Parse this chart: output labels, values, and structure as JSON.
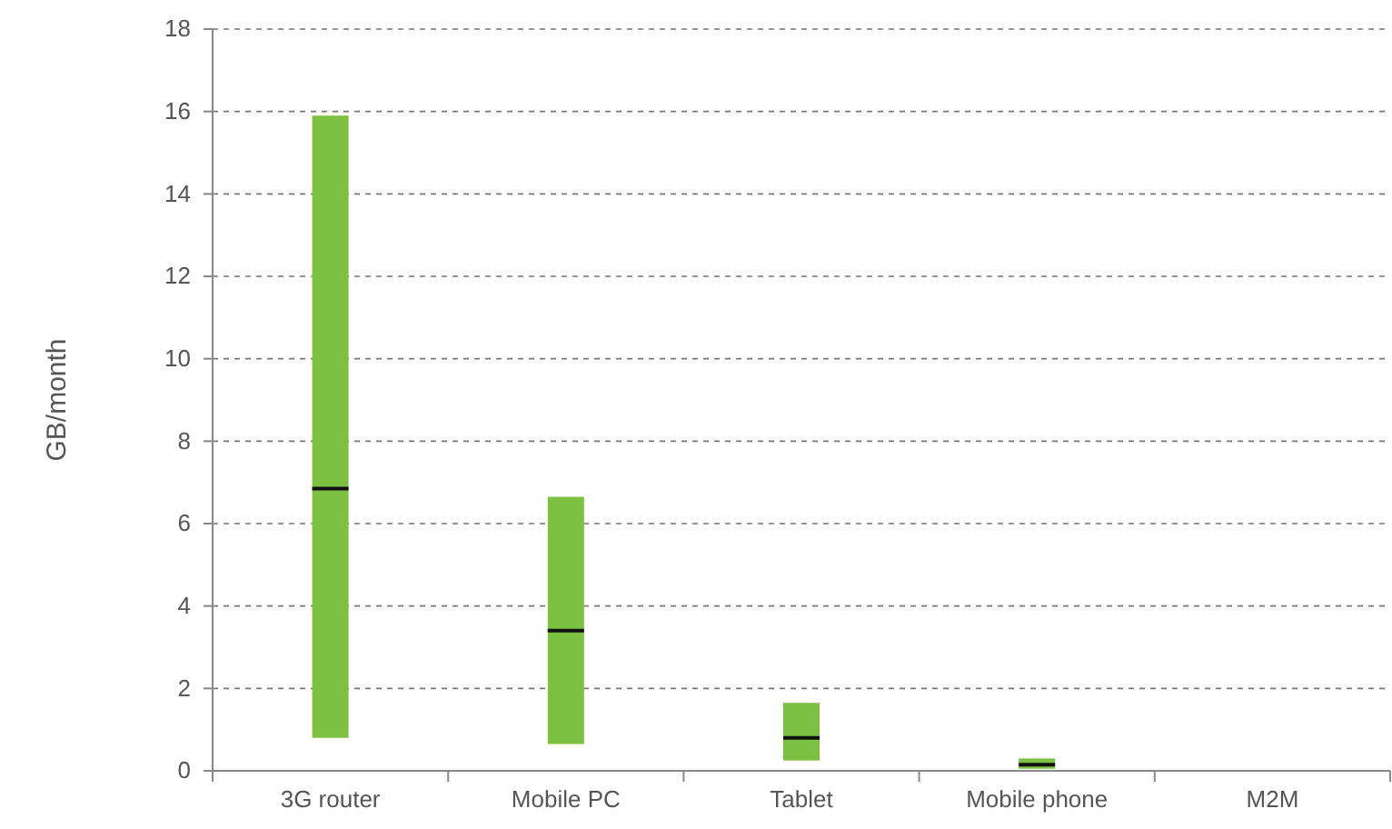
{
  "chart_data": {
    "type": "box",
    "ylabel": "GB/month",
    "categories": [
      "3G router",
      "Mobile PC",
      "Tablet",
      "Mobile phone",
      "M2M"
    ],
    "boxes": [
      {
        "low": 0.8,
        "q1": 0.8,
        "median": 6.85,
        "q3": 15.9,
        "high": 15.9
      },
      {
        "low": 0.65,
        "q1": 0.65,
        "median": 3.4,
        "q3": 6.65,
        "high": 6.65
      },
      {
        "low": 0.25,
        "q1": 0.25,
        "median": 0.8,
        "q3": 1.65,
        "high": 1.65
      },
      {
        "low": 0.05,
        "q1": 0.05,
        "median": 0.15,
        "q3": 0.3,
        "high": 0.3
      },
      null
    ],
    "color": "#7dc142",
    "ylim": [
      0,
      18
    ],
    "yticks": [
      0,
      2,
      4,
      6,
      8,
      10,
      12,
      14,
      16,
      18
    ],
    "grid": "y"
  }
}
